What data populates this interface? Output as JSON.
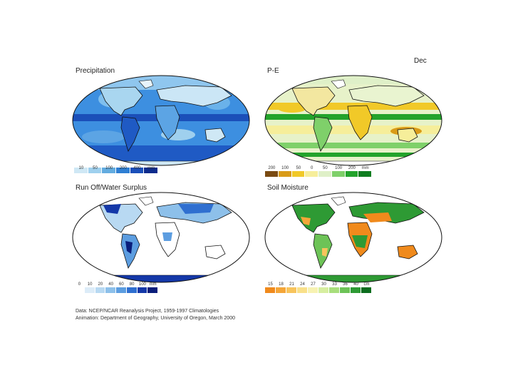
{
  "month": "Dec",
  "panels": [
    {
      "title": "Precipitation",
      "ticks": [
        "10",
        "50",
        "100",
        "200",
        "400",
        "mm"
      ],
      "colors": [
        "#cfe8f5",
        "#9fd0ee",
        "#63ace0",
        "#2f7fd3",
        "#1a4fba",
        "#0c2b8c"
      ],
      "ocean": "#3d8fe0",
      "land": "#a9d6f0"
    },
    {
      "title": "P-E",
      "ticks": [
        "200",
        "100",
        "50",
        "0",
        "50",
        "100",
        "200",
        "mm"
      ],
      "colors": [
        "#7a4a12",
        "#d99b18",
        "#f1c928",
        "#f6ee9a",
        "#dff0c8",
        "#7fd06a",
        "#23a32b",
        "#0f7d20"
      ],
      "ocean": "#e7f2c9",
      "land": "#f3e7a0"
    },
    {
      "title": "Run Off/Water Surplus",
      "ticks": [
        "0",
        "10",
        "20",
        "40",
        "60",
        "80",
        "100",
        "mm"
      ],
      "colors": [
        "#ffffff",
        "#dcecf8",
        "#b8d9f2",
        "#8dc0ea",
        "#5c9de0",
        "#2f6fd0",
        "#1438a8",
        "#091d7a"
      ],
      "ocean": "#ffffff",
      "land": "#dcecf8"
    },
    {
      "title": "Soil Moisture",
      "ticks": [
        "15",
        "18",
        "21",
        "24",
        "27",
        "30",
        "33",
        "36",
        "40",
        "cm"
      ],
      "colors": [
        "#f08a1c",
        "#f5a638",
        "#f8c45c",
        "#f9e08a",
        "#f7f2b2",
        "#d6eea0",
        "#a8de7c",
        "#6dc357",
        "#2e9a34",
        "#0c6d1e"
      ],
      "ocean": "#ffffff",
      "land": "#2e9a34"
    }
  ],
  "credit_lines": [
    "Data:  NCEP/NCAR Reanalysis Project, 1959-1997 Climatologies",
    "Animation:  Department of Geography, University of Oregon, March 2000"
  ]
}
